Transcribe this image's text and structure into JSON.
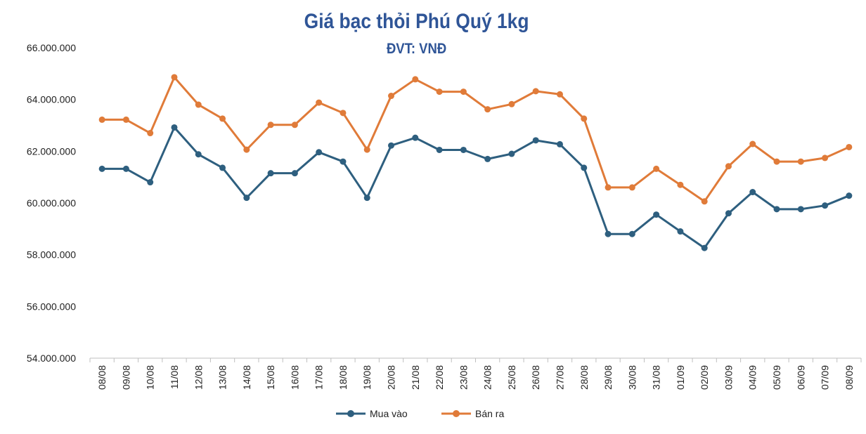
{
  "chart_data": {
    "type": "line",
    "title": "Giá bạc thỏi Phú Quý 1kg",
    "subtitle": "ĐVT: VNĐ",
    "categories": [
      "08/08",
      "09/08",
      "10/08",
      "11/08",
      "12/08",
      "13/08",
      "14/08",
      "15/08",
      "16/08",
      "17/08",
      "18/08",
      "19/08",
      "20/08",
      "21/08",
      "22/08",
      "23/08",
      "24/08",
      "25/08",
      "26/08",
      "27/08",
      "28/08",
      "29/08",
      "30/08",
      "31/08",
      "01/09",
      "02/09",
      "03/09",
      "04/09",
      "05/09",
      "06/09",
      "07/09",
      "08/09"
    ],
    "series": [
      {
        "name": "Mua vào",
        "color": "#2e5f7f",
        "values": [
          61320000,
          61320000,
          60800000,
          62920000,
          61880000,
          61360000,
          60200000,
          61150000,
          61150000,
          61960000,
          61600000,
          60200000,
          62220000,
          62520000,
          62050000,
          62050000,
          61700000,
          61900000,
          62420000,
          62270000,
          61360000,
          58800000,
          58800000,
          59550000,
          58900000,
          58260000,
          59600000,
          60420000,
          59760000,
          59760000,
          59900000,
          60280000
        ]
      },
      {
        "name": "Bán ra",
        "color": "#e07b39",
        "values": [
          63220000,
          63220000,
          62700000,
          64860000,
          63800000,
          63260000,
          62060000,
          63020000,
          63020000,
          63880000,
          63480000,
          62060000,
          64140000,
          64780000,
          64300000,
          64300000,
          63620000,
          63820000,
          64320000,
          64200000,
          63260000,
          60600000,
          60600000,
          61320000,
          60700000,
          60060000,
          61420000,
          62280000,
          61600000,
          61600000,
          61740000,
          62160000
        ]
      }
    ],
    "yticks": [
      "54.000.000",
      "56.000.000",
      "58.000.000",
      "60.000.000",
      "62.000.000",
      "64.000.000",
      "66.000.000"
    ],
    "ylim": [
      54000000,
      66000000
    ],
    "legend_position": "bottom",
    "grid": false
  }
}
